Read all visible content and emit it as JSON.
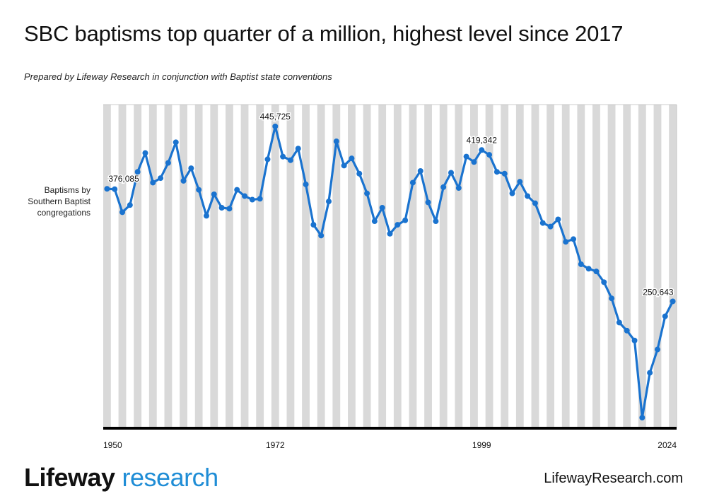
{
  "header": {
    "title": "SBC baptisms top quarter of a million, highest level since 2017",
    "subtitle": "Prepared by Lifeway Research in conjunction with Baptist state conventions"
  },
  "series_label_lines": [
    "Baptisms by",
    "Southern Baptist",
    "congregations"
  ],
  "footer": {
    "brand_part1": "Lifeway",
    "brand_part2": "research",
    "website": "LifewayResearch.com"
  },
  "colors": {
    "line": "#1a73cf",
    "stripe": "#d9d9d9",
    "axis": "#000000",
    "brand_accent": "#1f8dd6"
  },
  "chart_data": {
    "type": "line",
    "xlabel": "",
    "ylabel": "",
    "x_ticks": [
      1950,
      1972,
      1999,
      2024
    ],
    "xlim": [
      1950,
      2024
    ],
    "ylim": [
      110000,
      470000
    ],
    "grid": "alternating vertical bands",
    "series": [
      {
        "x": [
          1950,
          1951,
          1952,
          1953,
          1954,
          1955,
          1956,
          1957,
          1958,
          1959,
          1960,
          1961,
          1962,
          1963,
          1964,
          1965,
          1966,
          1967,
          1968,
          1969,
          1970,
          1971,
          1972,
          1973,
          1974,
          1975,
          1976,
          1977,
          1978,
          1979,
          1980,
          1981,
          1982,
          1983,
          1984,
          1985,
          1986,
          1987,
          1988,
          1989,
          1990,
          1991,
          1992,
          1993,
          1994,
          1995,
          1996,
          1997,
          1998,
          1999,
          2000,
          2001,
          2002,
          2003,
          2004,
          2005,
          2006,
          2007,
          2008,
          2009,
          2010,
          2011,
          2012,
          2013,
          2014,
          2015,
          2016,
          2017,
          2018,
          2019,
          2020,
          2021,
          2022,
          2023,
          2024
        ],
        "values": [
          376085,
          375700,
          350000,
          358000,
          395000,
          416000,
          383000,
          388000,
          405000,
          428000,
          385000,
          399000,
          375000,
          346000,
          370000,
          355000,
          354000,
          375000,
          368000,
          364000,
          365000,
          409000,
          445725,
          412000,
          408000,
          421000,
          381000,
          336000,
          324000,
          362000,
          429000,
          402000,
          410000,
          393000,
          371000,
          340000,
          355000,
          326000,
          336000,
          341000,
          383000,
          396000,
          361000,
          340000,
          378000,
          394000,
          377000,
          412000,
          406000,
          419342,
          414000,
          395000,
          393000,
          371000,
          384000,
          368000,
          360000,
          338000,
          334000,
          342000,
          317000,
          320000,
          292000,
          287000,
          284000,
          272000,
          254000,
          227000,
          218000,
          207000,
          121000,
          171000,
          197000,
          234000,
          250643
        ]
      }
    ],
    "data_labels": [
      {
        "index": 0,
        "text": "376,085"
      },
      {
        "index": 22,
        "text": "445,725"
      },
      {
        "index": 49,
        "text": "419,342"
      },
      {
        "index": 74,
        "text": "250,643"
      }
    ]
  }
}
